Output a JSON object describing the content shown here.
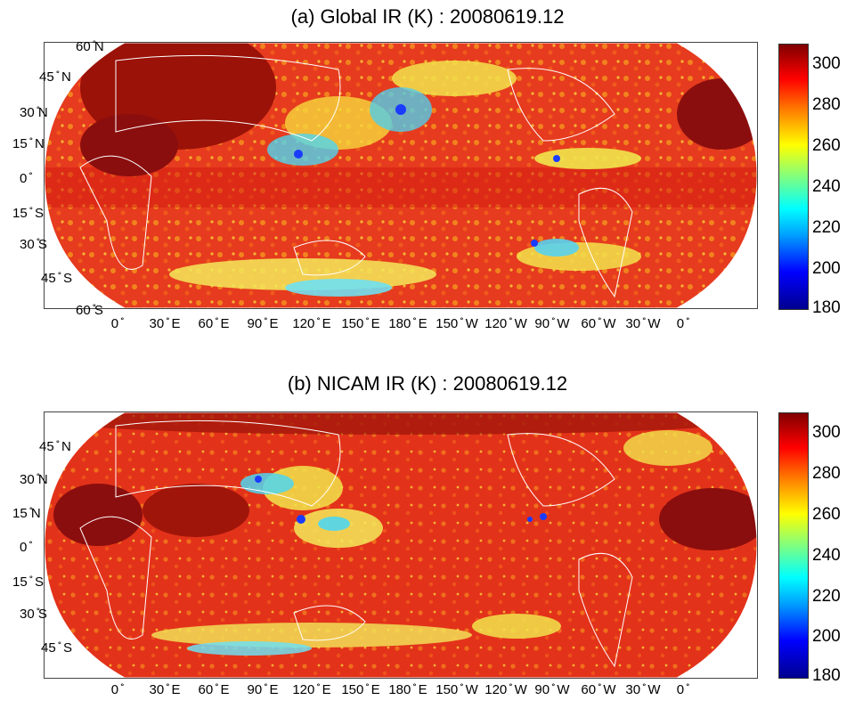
{
  "panels": [
    {
      "title": "(a) Global IR (K) : 20080619.12",
      "lat_labels": [
        "60 ̊N",
        "45 ̊ N",
        "30 ̊N",
        "15 ̊ N",
        "0 ̊",
        "15 ̊ S",
        "30 ̊S",
        "45 ̊ S",
        "60 ̊S"
      ],
      "lon_labels": [
        "0 ̊",
        "30 ̊ E",
        "60 ̊ E",
        "90 ̊ E",
        "120 ̊ E",
        "150 ̊ E",
        "180 ̊ E",
        "150 ̊ W",
        "120 ̊ W",
        "90 ̊ W",
        "60 ̊ W",
        "30 ̊ W",
        "0 ̊"
      ],
      "colorbar_ticks": [
        300,
        280,
        260,
        240,
        220,
        200,
        180
      ]
    },
    {
      "title": "(b) NICAM IR (K) : 20080619.12",
      "lat_labels": [
        "45 ̊ N",
        "30 ̊N",
        "15 ̊N",
        "0 ̊",
        "15 ̊ S",
        "30 ̊S",
        "45 ̊ S"
      ],
      "lon_labels": [
        "0 ̊",
        "30 ̊ E",
        "60 ̊ E",
        "90 ̊ E",
        "120 ̊ E",
        "150 ̊ E",
        "180 ̊ E",
        "150 ̊ W",
        "120 ̊ W",
        "90 ̊ W",
        "60 ̊ W",
        "30 ̊ W",
        "0 ̊"
      ],
      "colorbar_ticks": [
        300,
        280,
        260,
        240,
        220,
        200,
        180
      ]
    }
  ],
  "colorbar": {
    "min": 180,
    "max": 310,
    "colormap": "jet"
  },
  "colors": {
    "background": "#ffffff",
    "warm": "#e8301a",
    "hot": "#8b0e0e",
    "cold_cloud": "#1a55ff",
    "mid_cloud": "#f5e64b",
    "coast": "#ffffff"
  }
}
